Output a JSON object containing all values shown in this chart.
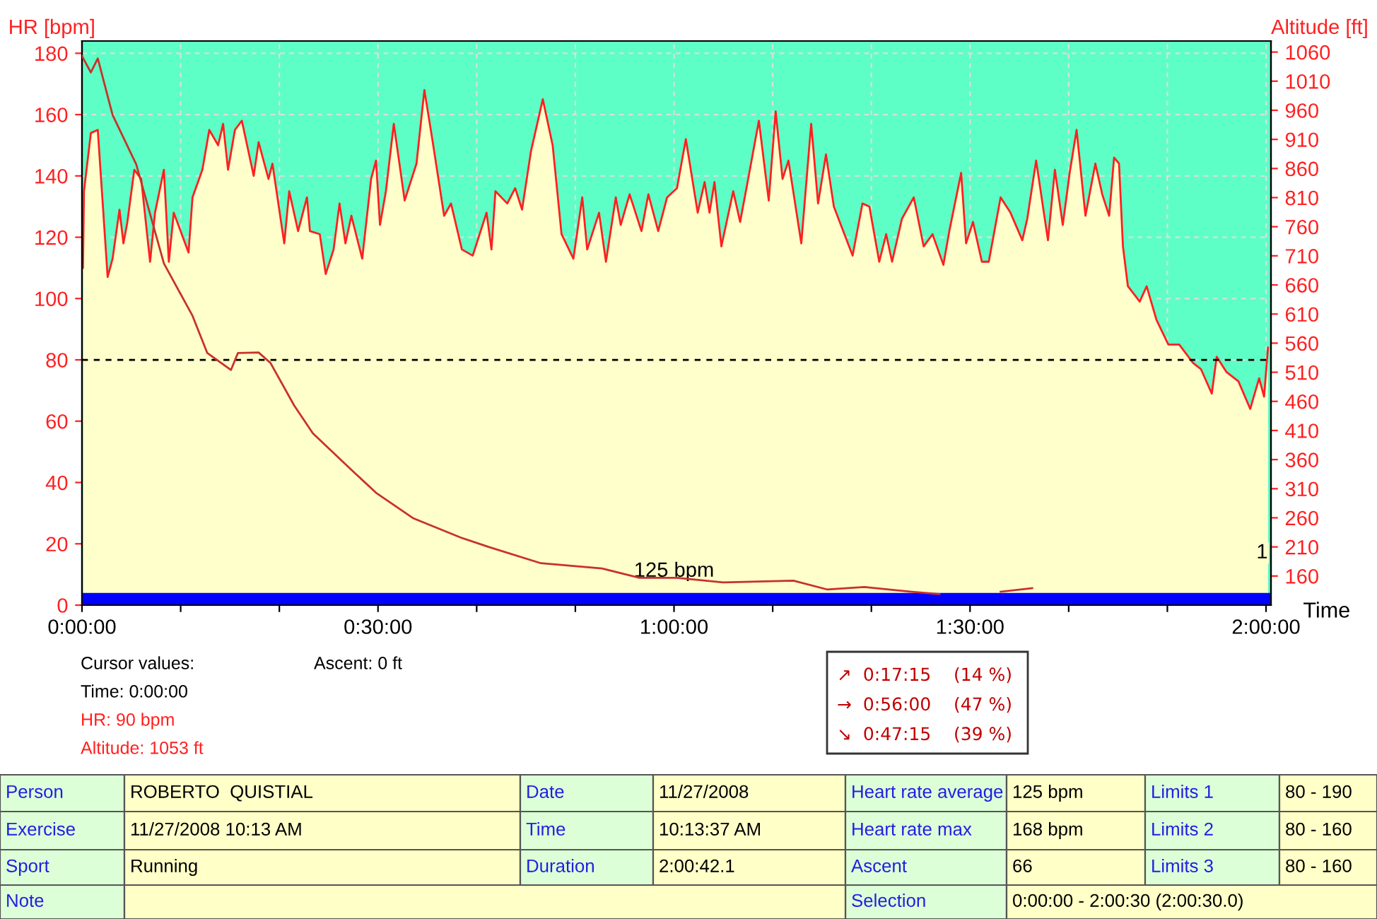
{
  "chart_data": {
    "type": "area",
    "xlabel": "Time",
    "ylabel": "HR [bpm]",
    "y2label": "Altitude [ft]",
    "xlim": [
      0,
      120.5
    ],
    "xticks": [
      {
        "value": 0,
        "label": "0:00:00"
      },
      {
        "value": 10,
        "label": null
      },
      {
        "value": 20,
        "label": null
      },
      {
        "value": 30,
        "label": "0:30:00"
      },
      {
        "value": 40,
        "label": null
      },
      {
        "value": 50,
        "label": null
      },
      {
        "value": 60,
        "label": "1:00:00"
      },
      {
        "value": 70,
        "label": null
      },
      {
        "value": 80,
        "label": null
      },
      {
        "value": 90,
        "label": "1:30:00"
      },
      {
        "value": 100,
        "label": null
      },
      {
        "value": 110,
        "label": null
      },
      {
        "value": 120,
        "label": "2:00:00"
      }
    ],
    "ylim": [
      0,
      184
    ],
    "yticks": [
      0,
      20,
      40,
      60,
      80,
      100,
      120,
      140,
      160,
      180
    ],
    "y2lim": [
      110,
      1079
    ],
    "y2ticks": [
      160,
      210,
      260,
      310,
      360,
      410,
      460,
      510,
      560,
      610,
      660,
      710,
      760,
      810,
      860,
      910,
      960,
      1010,
      1060
    ],
    "grid": true,
    "series": [
      {
        "color": "#ffffcc",
        "x": [
          0.1,
          0.2,
          0.9,
          1.6,
          2.6,
          3.1,
          3.8,
          4.2,
          4.6,
          5.3,
          6.0,
          6.9,
          7.4,
          8.3,
          8.8,
          9.3,
          10.8,
          11.2,
          12.2,
          12.9,
          13.8,
          14.3,
          14.8,
          15.5,
          16.2,
          17.4,
          17.9,
          18.9,
          19.3,
          20.5,
          21.0,
          21.9,
          22.8,
          23.1,
          24.1,
          24.7,
          25.5,
          26.1,
          26.7,
          27.3,
          28.4,
          29.3,
          29.8,
          30.2,
          30.8,
          31.6,
          32.7,
          33.9,
          34.7,
          35.5,
          36.7,
          37.4,
          38.5,
          39.6,
          40.3,
          41.0,
          41.5,
          41.9,
          43.1,
          43.9,
          44.6,
          45.5,
          46.7,
          47.7,
          48.6,
          49.8,
          50.7,
          51.2,
          52.4,
          53.1,
          54.1,
          54.6,
          55.5,
          56.7,
          57.4,
          58.4,
          59.3,
          60.3,
          61.2,
          62.4,
          63.1,
          63.6,
          64.1,
          64.8,
          66.0,
          66.7,
          67.4,
          68.6,
          69.6,
          70.3,
          71.0,
          71.6,
          72.9,
          73.9,
          74.6,
          75.4,
          76.2,
          78.1,
          79.1,
          79.8,
          80.8,
          81.5,
          82.1,
          83.1,
          84.3,
          85.3,
          86.2,
          87.3,
          87.9,
          89.1,
          89.6,
          90.3,
          91.2,
          91.9,
          93.1,
          94.1,
          95.3,
          95.8,
          96.7,
          97.9,
          98.6,
          99.4,
          100.1,
          100.8,
          101.7,
          102.7,
          103.4,
          104.1,
          104.6,
          105.1,
          105.5,
          106.0,
          107.2,
          107.9,
          108.9,
          110.1,
          111.2,
          112.6,
          113.4,
          114.5,
          115.0,
          116.0,
          117.2,
          118.4,
          119.3,
          119.8,
          120.2
        ],
        "values": [
          110,
          135,
          154,
          155,
          107,
          113,
          129,
          118,
          125,
          142,
          139,
          112,
          128,
          142,
          112,
          128,
          115,
          133,
          142,
          155,
          150,
          157,
          142,
          155,
          158,
          140,
          151,
          139,
          144,
          118,
          135,
          122,
          133,
          122,
          121,
          108,
          116,
          131,
          118,
          127,
          113,
          139,
          145,
          124,
          135,
          157,
          132,
          144,
          168,
          152,
          127,
          131,
          116,
          114,
          121,
          128,
          116,
          135,
          131,
          136,
          129,
          148,
          165,
          150,
          121,
          113,
          133,
          116,
          128,
          112,
          133,
          124,
          134,
          122,
          134,
          122,
          133,
          136,
          152,
          128,
          138,
          128,
          138,
          117,
          135,
          125,
          137,
          158,
          132,
          161,
          139,
          145,
          118,
          157,
          131,
          147,
          130,
          114,
          131,
          130,
          112,
          121,
          112,
          126,
          133,
          117,
          121,
          111,
          122,
          141,
          118,
          125,
          112,
          112,
          133,
          128,
          119,
          126,
          145,
          119,
          142,
          124,
          141,
          155,
          127,
          144,
          134,
          127,
          146,
          144,
          117,
          104,
          99,
          104,
          93,
          85,
          85,
          79,
          77,
          69,
          81,
          76,
          73,
          64,
          74,
          68,
          84
        ]
      },
      {
        "type": "line",
        "color": "#c8322a",
        "axis": "y2",
        "x": [
          0,
          0.9,
          1.6,
          3.1,
          5.5,
          8.3,
          11.2,
          12.7,
          15.1,
          15.8,
          17.9,
          19.1,
          21.5,
          23.4,
          27.2,
          29.8,
          33.6,
          38.4,
          41.2,
          46.5,
          52.7,
          56.5,
          60.3,
          65.0,
          72.1,
          75.5,
          79.3,
          84.1,
          86.9,
          90.0,
          93.1,
          96.3
        ],
        "values": [
          1053,
          1025,
          1049,
          952,
          867,
          697,
          607,
          543,
          514,
          543,
          544,
          526,
          453,
          405,
          344,
          303,
          259,
          226,
          210,
          182,
          173,
          157,
          157,
          149,
          152,
          137,
          141,
          133,
          129,
          null,
          133,
          139
        ]
      }
    ],
    "ref_lines": [
      {
        "axis": "y",
        "value": 80,
        "color": "#000000",
        "line_style": "dashed"
      }
    ],
    "bands": [
      {
        "axis": "y",
        "from": 0,
        "to": 184,
        "color": "#5effc6"
      },
      {
        "axis": "y",
        "from": 0,
        "to": 4,
        "color": "#0000ff"
      }
    ],
    "annotations": [
      {
        "text": "125 bpm",
        "x": 60,
        "y": 11
      },
      {
        "text": "1",
        "x": 119.6,
        "y": 17
      },
      "Cursor values:",
      "Time: 0:00:00",
      "HR: 90 bpm",
      "Altitude: 1053 ft",
      "Ascent: 0 ft",
      "↗  0:17:15    (14 %)",
      "→  0:56:00    (47 %)",
      "↘  0:47:15    (39 %)",
      "Person",
      "ROBERTO  QUISTIAL",
      "Date",
      "11/27/2008",
      "Heart rate average",
      "125 bpm",
      "Limits 1",
      "80 - 190",
      "Exercise",
      "11/27/2008 10:13 AM",
      "Time",
      "10:13:37 AM",
      "Heart rate max",
      "168 bpm",
      "Limits 2",
      "80 - 160",
      "Sport",
      "Running",
      "Duration",
      "2:00:42.1",
      "Ascent",
      "66",
      "Limits 3",
      "80 - 160",
      "Note",
      "Selection",
      "0:00:00 - 2:00:30 (2:00:30.0)"
    ]
  }
}
